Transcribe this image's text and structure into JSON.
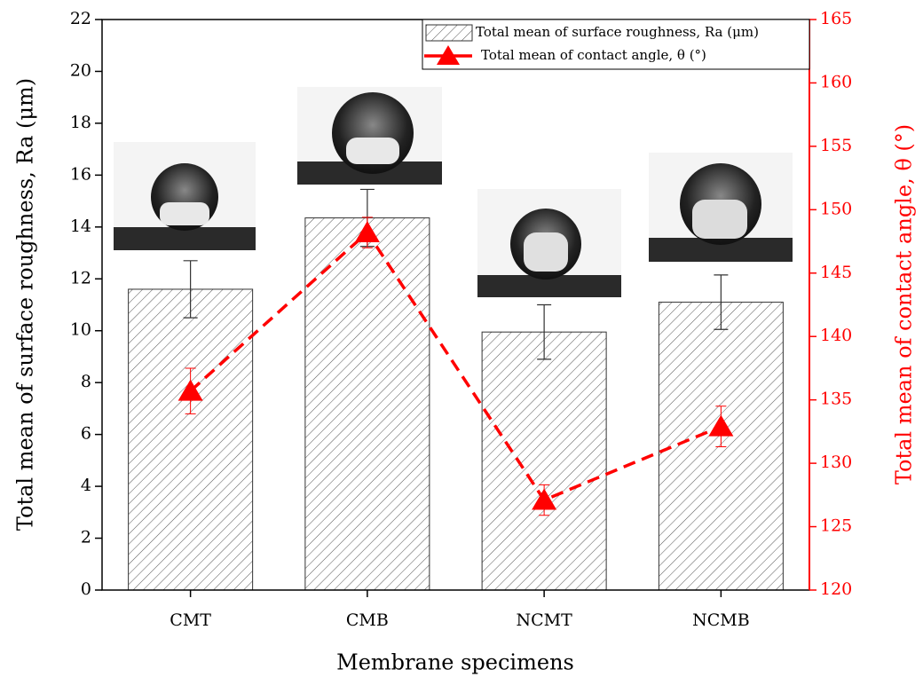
{
  "chart_data": {
    "type": "bar",
    "x_label": "Membrane specimens",
    "y_label": "Total mean of surface roughness, Ra (μm)",
    "y2_label": "Total mean of contact angle, θ (°)",
    "categories": [
      "CMT",
      "CMB",
      "NCMT",
      "NCMB"
    ],
    "series": [
      {
        "name": "Total mean of surface roughness, Ra (μm)",
        "type": "bar",
        "color": "#555555",
        "values": [
          11.6,
          14.35,
          9.95,
          11.1
        ],
        "errors": [
          1.1,
          1.1,
          1.05,
          1.05
        ]
      },
      {
        "name": "Total mean of contact angle, θ (°)",
        "type": "line",
        "axis": "y2",
        "color": "#ff0000",
        "values": [
          135.7,
          148.2,
          127.1,
          132.9
        ],
        "errors": [
          1.8,
          1.2,
          1.2,
          1.6
        ]
      }
    ],
    "ylim": [
      0,
      22
    ],
    "yticks": [
      0,
      2,
      4,
      6,
      8,
      10,
      12,
      14,
      16,
      18,
      20,
      22
    ],
    "y2lim": [
      120,
      165
    ],
    "y2ticks": [
      120,
      125,
      130,
      135,
      140,
      145,
      150,
      155,
      160,
      165
    ],
    "legend": "top-right"
  }
}
